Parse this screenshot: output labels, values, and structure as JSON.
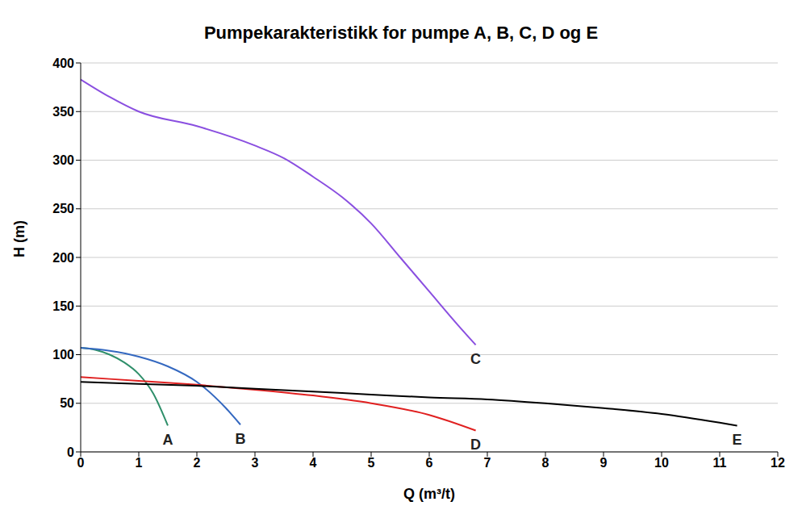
{
  "chart_data": {
    "type": "line",
    "title": "Pumpekarakteristikk for pumpe A, B, C, D og E",
    "x_label": "Q (m³/t)",
    "y_label": "H (m)",
    "xlim": [
      0,
      12
    ],
    "xticks": [
      0,
      1,
      2,
      3,
      4,
      5,
      6,
      7,
      8,
      9,
      10,
      11,
      12
    ],
    "ylim": [
      0,
      400
    ],
    "yticks": [
      0,
      50,
      100,
      150,
      200,
      250,
      300,
      350,
      400
    ],
    "grid": true,
    "series": [
      {
        "name": "A",
        "color": "#2f8f6a",
        "x": [
          0,
          0.25,
          0.5,
          0.75,
          1,
          1.25,
          1.5
        ],
        "values": [
          107,
          105,
          100,
          92,
          80,
          60,
          27
        ]
      },
      {
        "name": "B",
        "color": "#3468c0",
        "x": [
          0,
          0.5,
          1,
          1.5,
          2,
          2.5,
          2.75
        ],
        "values": [
          107,
          104,
          98,
          88,
          72,
          45,
          28
        ]
      },
      {
        "name": "C",
        "color": "#8a4fe0",
        "x": [
          0,
          0.5,
          1,
          2,
          3,
          3.5,
          4,
          4.5,
          5,
          5.5,
          6,
          6.5,
          6.8
        ],
        "values": [
          383,
          365,
          350,
          335,
          315,
          302,
          283,
          262,
          235,
          200,
          165,
          130,
          110
        ]
      },
      {
        "name": "D",
        "color": "#e02020",
        "x": [
          0,
          1,
          2,
          3,
          4,
          5,
          6,
          6.8
        ],
        "values": [
          77,
          73,
          69,
          64,
          58,
          50,
          38,
          22
        ]
      },
      {
        "name": "E",
        "color": "#000000",
        "x": [
          0,
          1,
          2,
          3,
          4,
          5,
          6,
          7,
          8,
          9,
          10,
          11,
          11.3
        ],
        "values": [
          72,
          70,
          68,
          65,
          62,
          59,
          56,
          54,
          50,
          45,
          39,
          30,
          27
        ]
      }
    ]
  }
}
